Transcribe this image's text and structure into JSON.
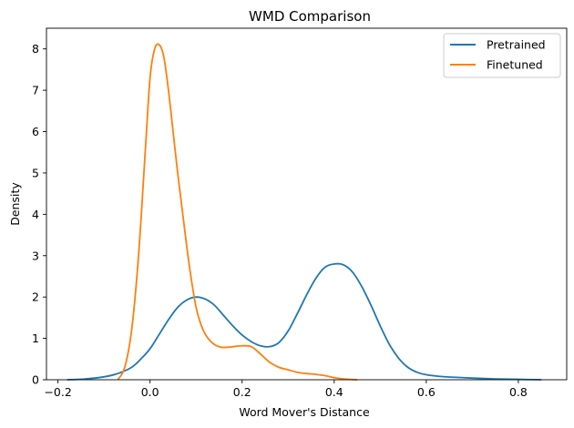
{
  "chart_data": {
    "type": "line",
    "title": "WMD Comparison",
    "xlabel": "Word Mover's Distance",
    "ylabel": "Density",
    "xlim": [
      -0.225,
      0.905
    ],
    "ylim": [
      0,
      8.5
    ],
    "xticks": [
      -0.2,
      0.0,
      0.2,
      0.4,
      0.6,
      0.8
    ],
    "xtick_labels": [
      "−0.2",
      "0.0",
      "0.2",
      "0.4",
      "0.6",
      "0.8"
    ],
    "yticks": [
      0,
      1,
      2,
      3,
      4,
      5,
      6,
      7,
      8
    ],
    "ytick_labels": [
      "0",
      "1",
      "2",
      "3",
      "4",
      "5",
      "6",
      "7",
      "8"
    ],
    "grid": false,
    "legend_position": "top-right",
    "series": [
      {
        "name": "Pretrained",
        "color": "#1f77b4",
        "x": [
          -0.18,
          -0.14,
          -0.1,
          -0.07,
          -0.04,
          -0.02,
          0.0,
          0.02,
          0.04,
          0.06,
          0.08,
          0.1,
          0.12,
          0.14,
          0.16,
          0.18,
          0.2,
          0.22,
          0.24,
          0.26,
          0.28,
          0.3,
          0.32,
          0.34,
          0.36,
          0.38,
          0.4,
          0.42,
          0.44,
          0.46,
          0.48,
          0.5,
          0.52,
          0.54,
          0.56,
          0.58,
          0.6,
          0.63,
          0.66,
          0.7,
          0.75,
          0.8,
          0.85
        ],
        "y": [
          0.0,
          0.02,
          0.07,
          0.15,
          0.3,
          0.5,
          0.75,
          1.1,
          1.45,
          1.75,
          1.93,
          2.0,
          1.95,
          1.8,
          1.55,
          1.3,
          1.08,
          0.92,
          0.82,
          0.8,
          0.9,
          1.18,
          1.6,
          2.05,
          2.45,
          2.72,
          2.8,
          2.78,
          2.6,
          2.25,
          1.8,
          1.3,
          0.85,
          0.52,
          0.3,
          0.18,
          0.12,
          0.08,
          0.06,
          0.04,
          0.02,
          0.01,
          0.0
        ]
      },
      {
        "name": "Finetuned",
        "color": "#ff7f0e",
        "x": [
          -0.07,
          -0.055,
          -0.04,
          -0.025,
          -0.01,
          0.0,
          0.01,
          0.02,
          0.03,
          0.04,
          0.05,
          0.06,
          0.07,
          0.08,
          0.09,
          0.1,
          0.11,
          0.12,
          0.13,
          0.14,
          0.15,
          0.16,
          0.18,
          0.2,
          0.22,
          0.24,
          0.26,
          0.28,
          0.3,
          0.32,
          0.34,
          0.36,
          0.38,
          0.4,
          0.42,
          0.45
        ],
        "y": [
          0.0,
          0.3,
          1.2,
          3.0,
          5.6,
          7.3,
          8.0,
          8.1,
          7.8,
          7.0,
          6.0,
          5.0,
          4.1,
          3.2,
          2.4,
          1.75,
          1.35,
          1.1,
          0.95,
          0.85,
          0.8,
          0.78,
          0.8,
          0.82,
          0.8,
          0.62,
          0.42,
          0.3,
          0.24,
          0.18,
          0.15,
          0.13,
          0.1,
          0.05,
          0.02,
          0.0
        ]
      }
    ]
  }
}
